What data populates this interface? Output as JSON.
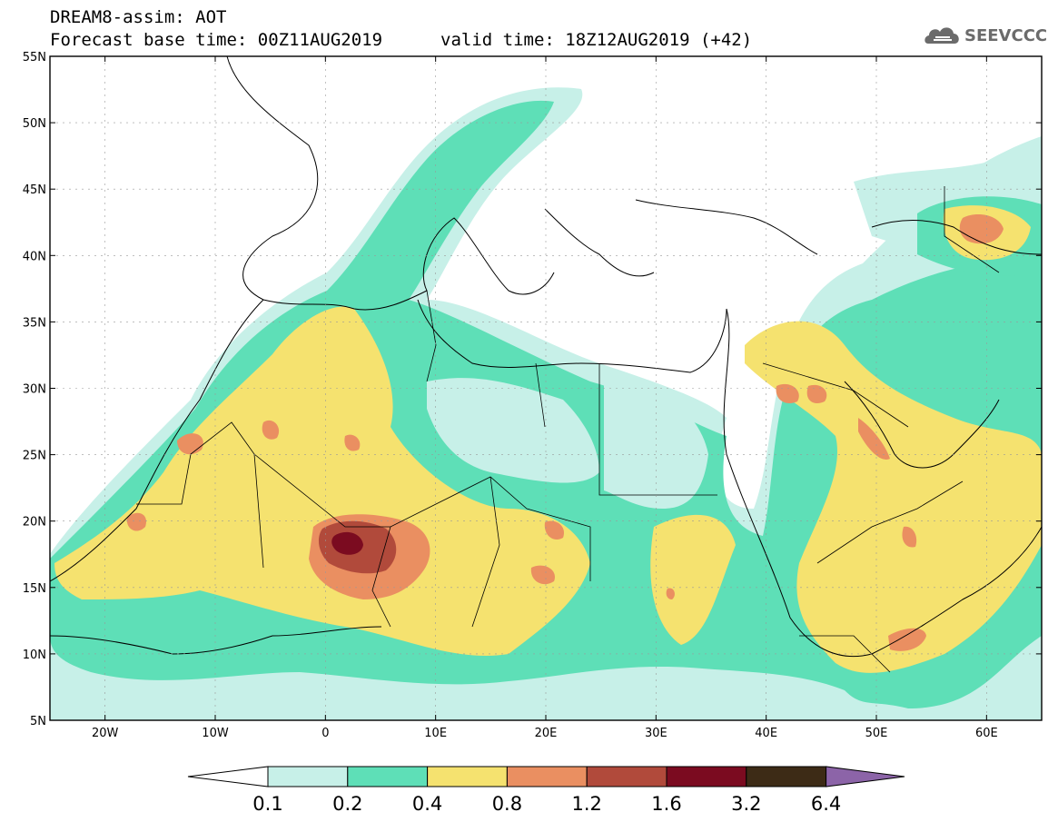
{
  "header": {
    "line1": "DREAM8-assim: AOT",
    "line2": "Forecast base time: 00Z11AUG2019",
    "valid": "valid time: 18Z12AUG2019 (+42)"
  },
  "logo": {
    "text": "SEEVCCC",
    "icon": "cloud-logo-icon"
  },
  "map": {
    "lat_labels": [
      "55N",
      "50N",
      "45N",
      "40N",
      "35N",
      "30N",
      "25N",
      "20N",
      "15N",
      "10N",
      "5N"
    ],
    "lon_labels": [
      "20W",
      "10W",
      "0",
      "10E",
      "20E",
      "30E",
      "40E",
      "50E",
      "60E"
    ],
    "lat_range": [
      5,
      55
    ],
    "lon_range": [
      -25,
      65
    ],
    "grid": true
  },
  "colorbar": {
    "labels": [
      "0.1",
      "0.2",
      "0.4",
      "0.8",
      "1.2",
      "1.6",
      "3.2",
      "6.4"
    ],
    "colors": [
      "#ffffff",
      "#c7f0e8",
      "#5edfb7",
      "#f5e26f",
      "#ea8f61",
      "#b14a3b",
      "#7b0b20",
      "#3d2b16",
      "#8c64a8"
    ]
  },
  "colors": {
    "c01": "#c7f0e8",
    "c02": "#5edfb7",
    "c04": "#f5e26f",
    "c08": "#ea8f61",
    "c12": "#b14a3b",
    "c16": "#7b0b20",
    "c32": "#3d2b16",
    "c64": "#8c64a8"
  }
}
